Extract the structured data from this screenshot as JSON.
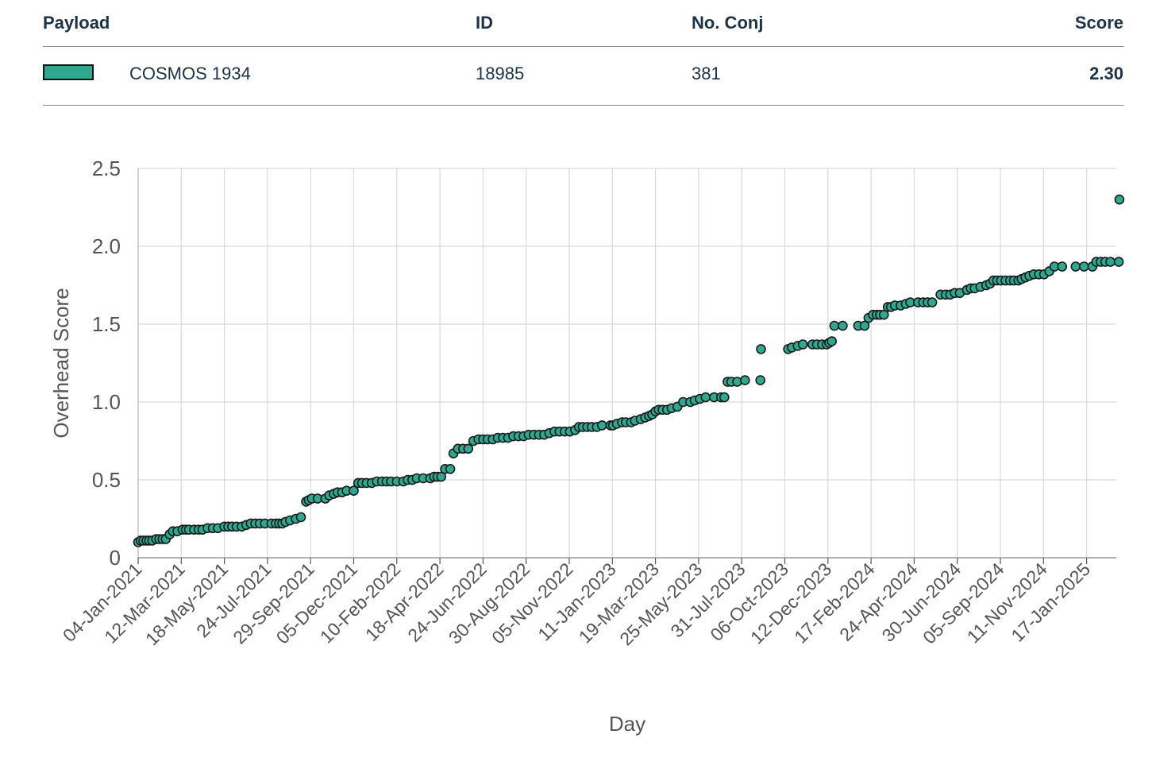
{
  "table": {
    "headers": {
      "payload": "Payload",
      "id": "ID",
      "conj": "No. Conj",
      "score": "Score"
    },
    "row": {
      "payload": "COSMOS 1934",
      "id": "18985",
      "conj": "381",
      "score": "2.30",
      "swatch_color": "#2fa88f"
    }
  },
  "colors": {
    "marker": "#2fa88f",
    "marker_edge": "#1a1a1a",
    "grid": "#d9d9d9"
  },
  "chart_data": {
    "type": "scatter",
    "xlabel": "Day",
    "ylabel": "Overhead Score",
    "ylim": [
      0,
      2.5
    ],
    "xlim": [
      "2021-01-04",
      "2025-03-25"
    ],
    "y_ticks": [
      0,
      0.5,
      1.0,
      1.5,
      2.0,
      2.5
    ],
    "y_tick_labels": [
      "0",
      "0.5",
      "1.0",
      "1.5",
      "2.0",
      "2.5"
    ],
    "x_tick_labels": [
      "04-Jan-2021",
      "12-Mar-2021",
      "18-May-2021",
      "24-Jul-2021",
      "29-Sep-2021",
      "05-Dec-2021",
      "10-Feb-2022",
      "18-Apr-2022",
      "24-Jun-2022",
      "30-Aug-2022",
      "05-Nov-2022",
      "11-Jan-2023",
      "19-Mar-2023",
      "25-May-2023",
      "31-Jul-2023",
      "06-Oct-2023",
      "12-Dec-2023",
      "17-Feb-2024",
      "24-Apr-2024",
      "30-Jun-2024",
      "05-Sep-2024",
      "11-Nov-2024",
      "17-Jan-2025"
    ],
    "grid": true,
    "series": [
      {
        "points": [
          [
            "2021-01-04",
            0.1
          ],
          [
            "2021-01-08",
            0.11
          ],
          [
            "2021-01-12",
            0.11
          ],
          [
            "2021-01-17",
            0.11
          ],
          [
            "2021-01-21",
            0.11
          ],
          [
            "2021-01-26",
            0.11
          ],
          [
            "2021-02-01",
            0.12
          ],
          [
            "2021-02-06",
            0.12
          ],
          [
            "2021-02-11",
            0.12
          ],
          [
            "2021-02-16",
            0.12
          ],
          [
            "2021-02-22",
            0.15
          ],
          [
            "2021-02-27",
            0.17
          ],
          [
            "2021-03-06",
            0.17
          ],
          [
            "2021-03-14",
            0.18
          ],
          [
            "2021-03-19",
            0.18
          ],
          [
            "2021-03-24",
            0.18
          ],
          [
            "2021-04-01",
            0.18
          ],
          [
            "2021-04-08",
            0.18
          ],
          [
            "2021-04-14",
            0.18
          ],
          [
            "2021-04-22",
            0.19
          ],
          [
            "2021-04-30",
            0.19
          ],
          [
            "2021-05-08",
            0.19
          ],
          [
            "2021-05-18",
            0.2
          ],
          [
            "2021-05-24",
            0.2
          ],
          [
            "2021-05-30",
            0.2
          ],
          [
            "2021-06-06",
            0.2
          ],
          [
            "2021-06-14",
            0.2
          ],
          [
            "2021-06-21",
            0.21
          ],
          [
            "2021-06-28",
            0.22
          ],
          [
            "2021-07-05",
            0.22
          ],
          [
            "2021-07-12",
            0.22
          ],
          [
            "2021-07-20",
            0.22
          ],
          [
            "2021-07-30",
            0.22
          ],
          [
            "2021-08-06",
            0.22
          ],
          [
            "2021-08-11",
            0.22
          ],
          [
            "2021-08-16",
            0.22
          ],
          [
            "2021-08-21",
            0.23
          ],
          [
            "2021-08-28",
            0.24
          ],
          [
            "2021-09-06",
            0.25
          ],
          [
            "2021-09-14",
            0.26
          ],
          [
            "2021-09-22",
            0.36
          ],
          [
            "2021-09-26",
            0.37
          ],
          [
            "2021-10-01",
            0.38
          ],
          [
            "2021-10-10",
            0.38
          ],
          [
            "2021-10-22",
            0.38
          ],
          [
            "2021-10-28",
            0.4
          ],
          [
            "2021-11-04",
            0.41
          ],
          [
            "2021-11-10",
            0.42
          ],
          [
            "2021-11-17",
            0.42
          ],
          [
            "2021-11-24",
            0.43
          ],
          [
            "2021-12-05",
            0.43
          ],
          [
            "2021-12-12",
            0.48
          ],
          [
            "2021-12-18",
            0.48
          ],
          [
            "2021-12-25",
            0.48
          ],
          [
            "2022-01-02",
            0.48
          ],
          [
            "2022-01-10",
            0.49
          ],
          [
            "2022-01-18",
            0.49
          ],
          [
            "2022-01-25",
            0.49
          ],
          [
            "2022-02-01",
            0.49
          ],
          [
            "2022-02-10",
            0.49
          ],
          [
            "2022-02-20",
            0.49
          ],
          [
            "2022-02-27",
            0.5
          ],
          [
            "2022-03-06",
            0.5
          ],
          [
            "2022-03-13",
            0.51
          ],
          [
            "2022-03-23",
            0.51
          ],
          [
            "2022-04-03",
            0.51
          ],
          [
            "2022-04-09",
            0.52
          ],
          [
            "2022-04-14",
            0.52
          ],
          [
            "2022-04-20",
            0.52
          ],
          [
            "2022-04-26",
            0.57
          ],
          [
            "2022-05-04",
            0.57
          ],
          [
            "2022-05-09",
            0.67
          ],
          [
            "2022-05-16",
            0.7
          ],
          [
            "2022-05-24",
            0.7
          ],
          [
            "2022-06-01",
            0.7
          ],
          [
            "2022-06-09",
            0.75
          ],
          [
            "2022-06-17",
            0.76
          ],
          [
            "2022-06-24",
            0.76
          ],
          [
            "2022-07-01",
            0.76
          ],
          [
            "2022-07-09",
            0.76
          ],
          [
            "2022-07-17",
            0.77
          ],
          [
            "2022-07-25",
            0.77
          ],
          [
            "2022-08-02",
            0.77
          ],
          [
            "2022-08-10",
            0.78
          ],
          [
            "2022-08-18",
            0.78
          ],
          [
            "2022-08-26",
            0.78
          ],
          [
            "2022-09-03",
            0.79
          ],
          [
            "2022-09-11",
            0.79
          ],
          [
            "2022-09-19",
            0.79
          ],
          [
            "2022-09-27",
            0.79
          ],
          [
            "2022-10-05",
            0.8
          ],
          [
            "2022-10-13",
            0.81
          ],
          [
            "2022-10-21",
            0.81
          ],
          [
            "2022-10-29",
            0.81
          ],
          [
            "2022-11-06",
            0.81
          ],
          [
            "2022-11-14",
            0.82
          ],
          [
            "2022-11-20",
            0.84
          ],
          [
            "2022-11-26",
            0.84
          ],
          [
            "2022-12-03",
            0.84
          ],
          [
            "2022-12-10",
            0.84
          ],
          [
            "2022-12-18",
            0.84
          ],
          [
            "2022-12-26",
            0.85
          ],
          [
            "2023-01-08",
            0.85
          ],
          [
            "2023-01-12",
            0.85
          ],
          [
            "2023-01-18",
            0.86
          ],
          [
            "2023-01-26",
            0.87
          ],
          [
            "2023-02-01",
            0.87
          ],
          [
            "2023-02-09",
            0.87
          ],
          [
            "2023-02-15",
            0.88
          ],
          [
            "2023-02-24",
            0.89
          ],
          [
            "2023-03-03",
            0.9
          ],
          [
            "2023-03-09",
            0.91
          ],
          [
            "2023-03-14",
            0.92
          ],
          [
            "2023-03-19",
            0.94
          ],
          [
            "2023-03-24",
            0.95
          ],
          [
            "2023-03-30",
            0.95
          ],
          [
            "2023-04-06",
            0.95
          ],
          [
            "2023-04-13",
            0.96
          ],
          [
            "2023-04-22",
            0.97
          ],
          [
            "2023-05-01",
            1.0
          ],
          [
            "2023-05-12",
            1.0
          ],
          [
            "2023-05-19",
            1.01
          ],
          [
            "2023-05-27",
            1.02
          ],
          [
            "2023-06-05",
            1.03
          ],
          [
            "2023-06-18",
            1.03
          ],
          [
            "2023-06-29",
            1.03
          ],
          [
            "2023-07-04",
            1.03
          ],
          [
            "2023-07-09",
            1.13
          ],
          [
            "2023-07-15",
            1.13
          ],
          [
            "2023-07-24",
            1.13
          ],
          [
            "2023-08-05",
            1.14
          ],
          [
            "2023-08-29",
            1.14
          ],
          [
            "2023-08-30",
            1.34
          ],
          [
            "2023-10-11",
            1.34
          ],
          [
            "2023-10-17",
            1.35
          ],
          [
            "2023-10-26",
            1.36
          ],
          [
            "2023-11-03",
            1.37
          ],
          [
            "2023-11-18",
            1.37
          ],
          [
            "2023-11-25",
            1.37
          ],
          [
            "2023-12-03",
            1.37
          ],
          [
            "2023-12-10",
            1.37
          ],
          [
            "2023-12-14",
            1.38
          ],
          [
            "2023-12-18",
            1.39
          ],
          [
            "2023-12-22",
            1.49
          ],
          [
            "2024-01-04",
            1.49
          ],
          [
            "2024-01-28",
            1.49
          ],
          [
            "2024-02-07",
            1.49
          ],
          [
            "2024-02-13",
            1.54
          ],
          [
            "2024-02-20",
            1.56
          ],
          [
            "2024-02-26",
            1.56
          ],
          [
            "2024-03-02",
            1.56
          ],
          [
            "2024-03-08",
            1.56
          ],
          [
            "2024-03-14",
            1.61
          ],
          [
            "2024-03-19",
            1.61
          ],
          [
            "2024-03-25",
            1.62
          ],
          [
            "2024-04-03",
            1.62
          ],
          [
            "2024-04-11",
            1.63
          ],
          [
            "2024-04-18",
            1.64
          ],
          [
            "2024-04-30",
            1.64
          ],
          [
            "2024-05-08",
            1.64
          ],
          [
            "2024-05-15",
            1.64
          ],
          [
            "2024-05-22",
            1.64
          ],
          [
            "2024-06-04",
            1.69
          ],
          [
            "2024-06-12",
            1.69
          ],
          [
            "2024-06-19",
            1.69
          ],
          [
            "2024-06-26",
            1.7
          ],
          [
            "2024-07-04",
            1.7
          ],
          [
            "2024-07-15",
            1.72
          ],
          [
            "2024-07-21",
            1.73
          ],
          [
            "2024-07-27",
            1.73
          ],
          [
            "2024-08-05",
            1.74
          ],
          [
            "2024-08-14",
            1.75
          ],
          [
            "2024-08-20",
            1.76
          ],
          [
            "2024-08-25",
            1.78
          ],
          [
            "2024-08-31",
            1.78
          ],
          [
            "2024-09-06",
            1.78
          ],
          [
            "2024-09-13",
            1.78
          ],
          [
            "2024-09-20",
            1.78
          ],
          [
            "2024-09-26",
            1.78
          ],
          [
            "2024-10-03",
            1.78
          ],
          [
            "2024-10-08",
            1.79
          ],
          [
            "2024-10-14",
            1.8
          ],
          [
            "2024-10-20",
            1.81
          ],
          [
            "2024-10-27",
            1.82
          ],
          [
            "2024-11-04",
            1.82
          ],
          [
            "2024-11-12",
            1.82
          ],
          [
            "2024-11-20",
            1.84
          ],
          [
            "2024-11-28",
            1.87
          ],
          [
            "2024-12-10",
            1.87
          ],
          [
            "2024-12-31",
            1.87
          ],
          [
            "2025-01-13",
            1.87
          ],
          [
            "2025-01-26",
            1.87
          ],
          [
            "2025-02-01",
            1.9
          ],
          [
            "2025-02-08",
            1.9
          ],
          [
            "2025-02-15",
            1.9
          ],
          [
            "2025-02-23",
            1.9
          ],
          [
            "2025-03-08",
            1.9
          ],
          [
            "2025-03-09",
            2.3
          ]
        ]
      }
    ]
  }
}
